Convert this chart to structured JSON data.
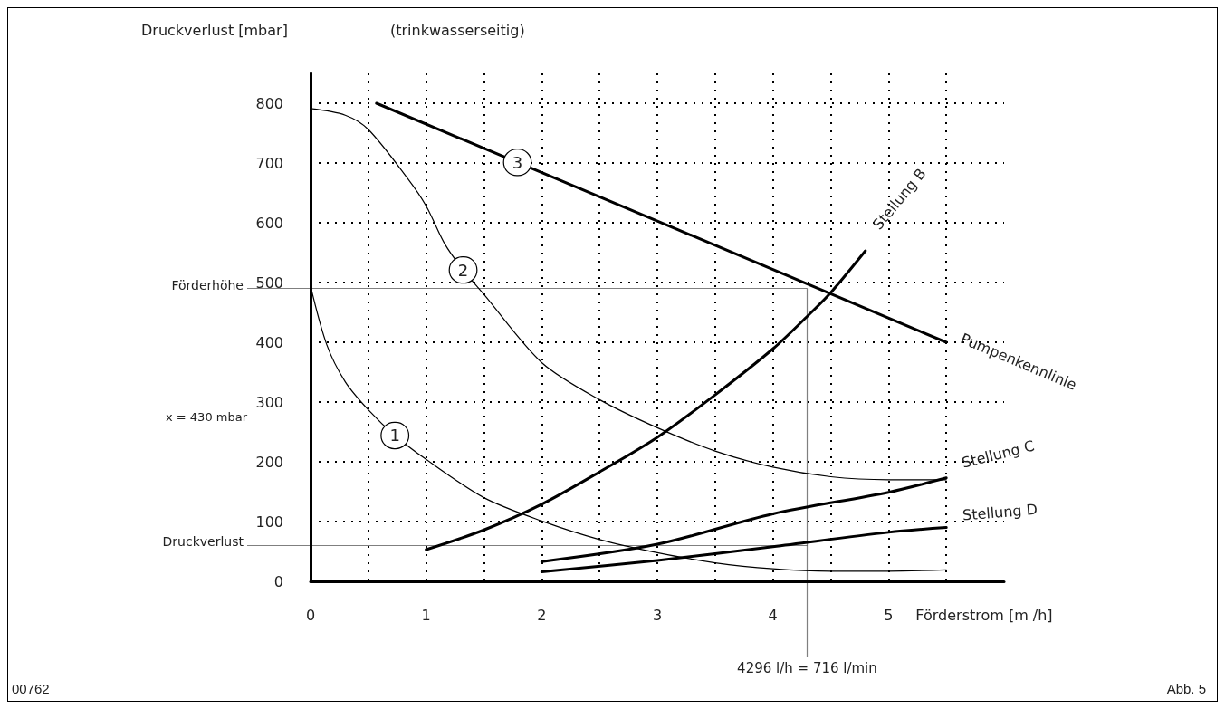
{
  "chart_data": {
    "type": "line",
    "ylabel": "Druckverlust [mbar]",
    "subtitle": "(trinkwasserseitig)",
    "xlabel": "Förderstrom [m /h]",
    "xlim": [
      0,
      6
    ],
    "ylim": [
      0,
      850
    ],
    "xticks": [
      0,
      {
        "value": 0.5,
        "label": null
      },
      1,
      {
        "value": 1.5,
        "label": null
      },
      2,
      {
        "value": 2.5,
        "label": null
      },
      3,
      {
        "value": 3.5,
        "label": null
      },
      4,
      {
        "value": 4.5,
        "label": null
      },
      5,
      {
        "value": 5.5,
        "label": null
      }
    ],
    "yticks": [
      0,
      100,
      200,
      300,
      400,
      500,
      600,
      700,
      800
    ],
    "grid": true,
    "series": [
      {
        "color": "#000000",
        "x": [
          0,
          0.14,
          0.3,
          0.5,
          0.73,
          1,
          1.5,
          2,
          2.5,
          3,
          3.5,
          4,
          4.5,
          5,
          5.5
        ],
        "values": [
          494,
          396,
          334,
          287,
          244,
          204,
          140,
          101,
          70,
          48,
          31,
          21,
          17,
          17,
          19
        ]
      },
      {
        "color": "#000000",
        "x": [
          0,
          0.3,
          0.5,
          0.84,
          1,
          1.16,
          1.32,
          1.5,
          2,
          2.5,
          3,
          3.5,
          4,
          4.5,
          5,
          5.5
        ],
        "values": [
          791,
          780,
          756,
          674,
          628,
          565,
          521,
          480,
          366,
          304,
          257,
          218,
          191,
          175,
          170,
          170
        ]
      },
      {
        "name": "Pumpenkennlinie",
        "color": "#000000",
        "x": [
          0.57,
          5.5
        ],
        "values": [
          800,
          400
        ]
      },
      {
        "name": "Stellung B",
        "color": "#000000",
        "x": [
          1,
          1.5,
          2,
          2.5,
          3,
          3.5,
          4,
          4.3,
          4.5,
          4.8
        ],
        "values": [
          53,
          86,
          129,
          183,
          241,
          312,
          389,
          444,
          483,
          553
        ]
      },
      {
        "name": "Stellung C",
        "color": "#000000",
        "x": [
          2,
          3,
          4,
          5,
          5.5
        ],
        "values": [
          33,
          62,
          113,
          149,
          173
        ]
      },
      {
        "name": "Stellung D",
        "color": "#000000",
        "x": [
          2,
          3,
          4,
          5,
          5.5
        ],
        "values": [
          16,
          35,
          58,
          82,
          90
        ]
      }
    ],
    "ref_lines": [
      {
        "axis": "y",
        "value": 490,
        "label": "Förderhöhe",
        "color": "#000000"
      },
      {
        "axis": "y",
        "value": 60,
        "label": "Druckverlust",
        "color": "#000000"
      },
      {
        "axis": "x",
        "value": 4.296,
        "label": "4296 l/h = 716 l/min",
        "color": "#000000"
      }
    ],
    "annotations": [
      {
        "text": "1",
        "x": 0.73,
        "y": 244
      },
      {
        "text": "2",
        "x": 1.32,
        "y": 521
      },
      {
        "text": "3",
        "x": 1.79,
        "y": 701
      },
      "x = 430 mbar",
      "00762",
      "Abb. 5"
    ],
    "legend": false
  }
}
